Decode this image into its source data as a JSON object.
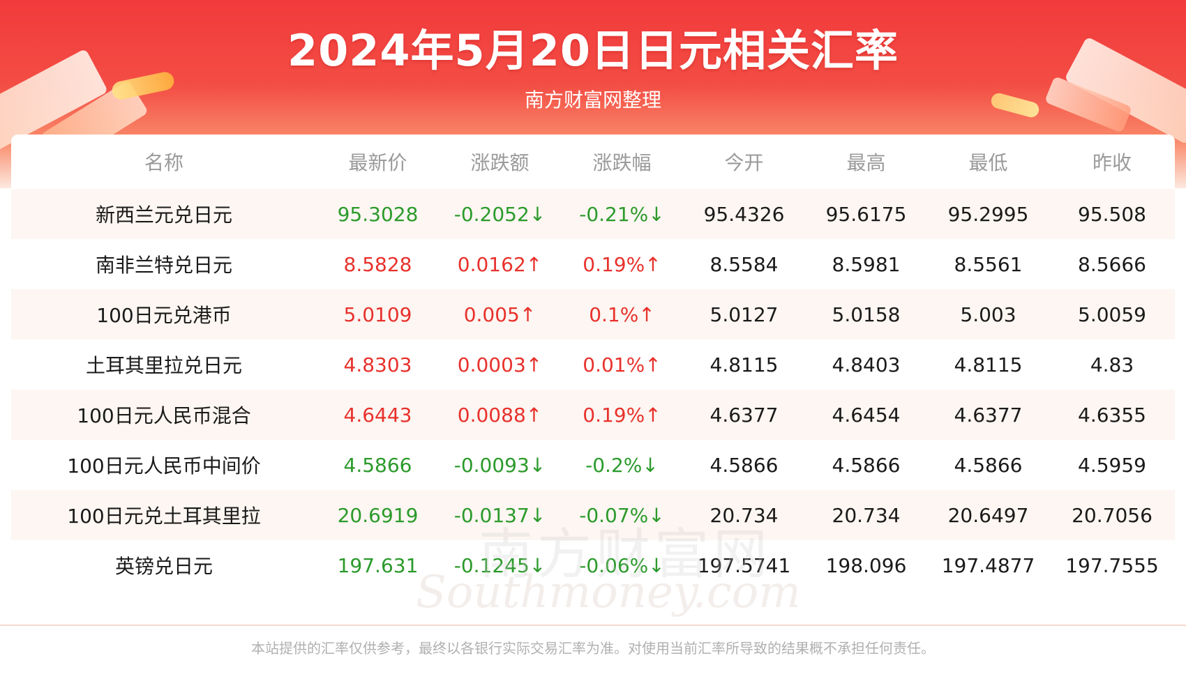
{
  "header": {
    "title": "2024年5月20日日元相关汇率",
    "subtitle": "南方财富网整理"
  },
  "table": {
    "columns": [
      "名称",
      "最新价",
      "涨跌额",
      "涨跌幅",
      "今开",
      "最高",
      "最低",
      "昨收"
    ],
    "rows": [
      {
        "name": "新西兰元兑日元",
        "latest": "95.3028",
        "change": "-0.2052↓",
        "pct": "-0.21%↓",
        "open": "95.4326",
        "high": "95.6175",
        "low": "95.2995",
        "prev": "95.508",
        "direction": "down"
      },
      {
        "name": "南非兰特兑日元",
        "latest": "8.5828",
        "change": "0.0162↑",
        "pct": "0.19%↑",
        "open": "8.5584",
        "high": "8.5981",
        "low": "8.5561",
        "prev": "8.5666",
        "direction": "up"
      },
      {
        "name": "100日元兑港币",
        "latest": "5.0109",
        "change": "0.005↑",
        "pct": "0.1%↑",
        "open": "5.0127",
        "high": "5.0158",
        "low": "5.003",
        "prev": "5.0059",
        "direction": "up"
      },
      {
        "name": "土耳其里拉兑日元",
        "latest": "4.8303",
        "change": "0.0003↑",
        "pct": "0.01%↑",
        "open": "4.8115",
        "high": "4.8403",
        "low": "4.8115",
        "prev": "4.83",
        "direction": "up"
      },
      {
        "name": "100日元人民币混合",
        "latest": "4.6443",
        "change": "0.0088↑",
        "pct": "0.19%↑",
        "open": "4.6377",
        "high": "4.6454",
        "low": "4.6377",
        "prev": "4.6355",
        "direction": "up"
      },
      {
        "name": "100日元人民币中间价",
        "latest": "4.5866",
        "change": "-0.0093↓",
        "pct": "-0.2%↓",
        "open": "4.5866",
        "high": "4.5866",
        "low": "4.5866",
        "prev": "4.5959",
        "direction": "down"
      },
      {
        "name": "100日元兑土耳其里拉",
        "latest": "20.6919",
        "change": "-0.0137↓",
        "pct": "-0.07%↓",
        "open": "20.734",
        "high": "20.734",
        "low": "20.6497",
        "prev": "20.7056",
        "direction": "down"
      },
      {
        "name": "英镑兑日元",
        "latest": "197.631",
        "change": "-0.1245↓",
        "pct": "-0.06%↓",
        "open": "197.5741",
        "high": "198.096",
        "low": "197.4877",
        "prev": "197.7555",
        "direction": "down"
      }
    ]
  },
  "watermark": {
    "cn": "南方财富网",
    "en": "Southmoney.com"
  },
  "footer": {
    "disclaimer": "本站提供的汇率仅供参考，最终以各银行实际交易汇率为准。对使用当前汇率所导致的结果概不承担任何责任。"
  },
  "colors": {
    "up": "#e8312c",
    "down": "#2b9a2b",
    "brand_red": "#f23a3c"
  }
}
